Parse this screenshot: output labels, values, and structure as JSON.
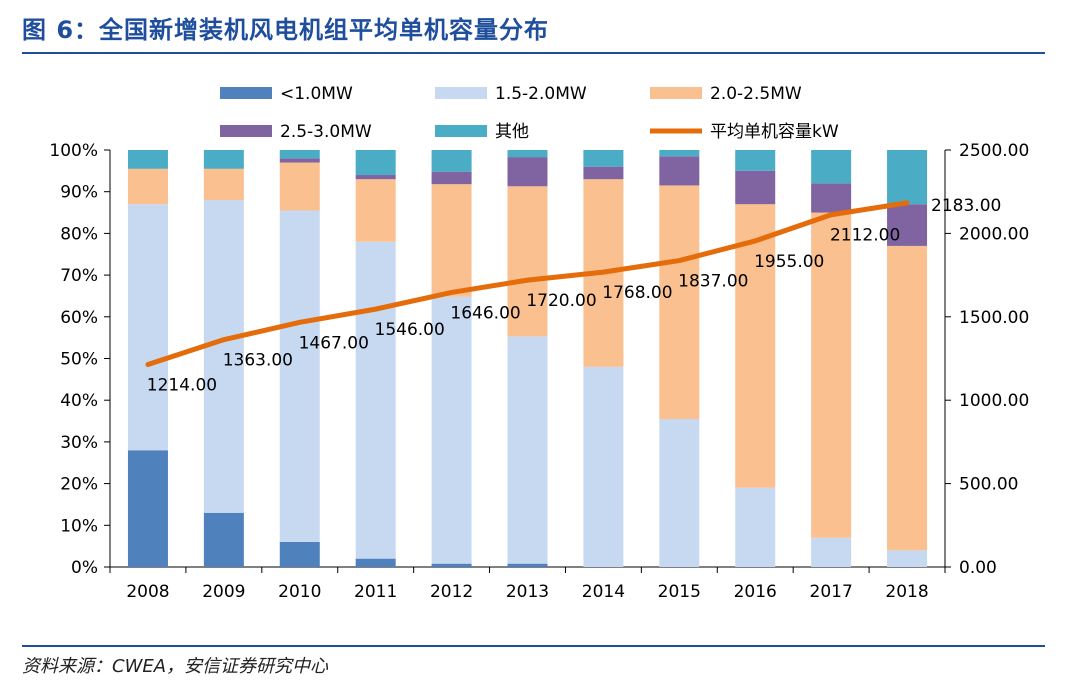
{
  "title": "图 6：全国新增装机风电机组平均单机容量分布",
  "source": "资料来源：CWEA，安信证券研究中心",
  "chart_data": {
    "type": "bar",
    "stacked": true,
    "categories": [
      "2008",
      "2009",
      "2010",
      "2011",
      "2012",
      "2013",
      "2014",
      "2015",
      "2016",
      "2017",
      "2018"
    ],
    "series": [
      {
        "name": "<1.0MW",
        "color": "#4f81bd",
        "values": [
          28,
          13,
          6,
          2,
          0.8,
          0.8,
          0,
          0,
          0,
          0,
          0
        ]
      },
      {
        "name": "1.5-2.0MW",
        "color": "#c6d9f1",
        "values": [
          59,
          75,
          79.5,
          76,
          64,
          54.5,
          48,
          35.5,
          19,
          7,
          4
        ]
      },
      {
        "name": "2.0-2.5MW",
        "color": "#fac090",
        "values": [
          8.5,
          7.5,
          11.5,
          15,
          27,
          36,
          45,
          56,
          68,
          78,
          73
        ]
      },
      {
        "name": "2.5-3.0MW",
        "color": "#8064a2",
        "values": [
          0,
          0,
          1,
          1,
          3,
          7,
          3,
          7,
          8,
          7,
          10
        ]
      },
      {
        "name": "其他",
        "color": "#4bacc6",
        "values": [
          4.5,
          4.5,
          2,
          6,
          5.2,
          1.7,
          4,
          1.5,
          5,
          8,
          13
        ]
      }
    ],
    "line": {
      "name": "平均单机容量kW",
      "color": "#e46c0a",
      "axis": "right",
      "values": [
        1214,
        1363,
        1467,
        1546,
        1646,
        1720,
        1768,
        1837,
        1955,
        2112,
        2183
      ],
      "labels": [
        "1214.00",
        "1363.00",
        "1467.00",
        "1546.00",
        "1646.00",
        "1720.00",
        "1768.00",
        "1837.00",
        "1955.00",
        "2112.00",
        "2183.00"
      ]
    },
    "y_left": {
      "min": 0,
      "max": 100,
      "ticks": [
        "0%",
        "10%",
        "20%",
        "30%",
        "40%",
        "50%",
        "60%",
        "70%",
        "80%",
        "90%",
        "100%"
      ]
    },
    "y_right": {
      "min": 0,
      "max": 2500,
      "ticks": [
        "0.00",
        "500.00",
        "1000.00",
        "1500.00",
        "2000.00",
        "2500.00"
      ]
    },
    "legend_position": "top",
    "grid": false
  }
}
